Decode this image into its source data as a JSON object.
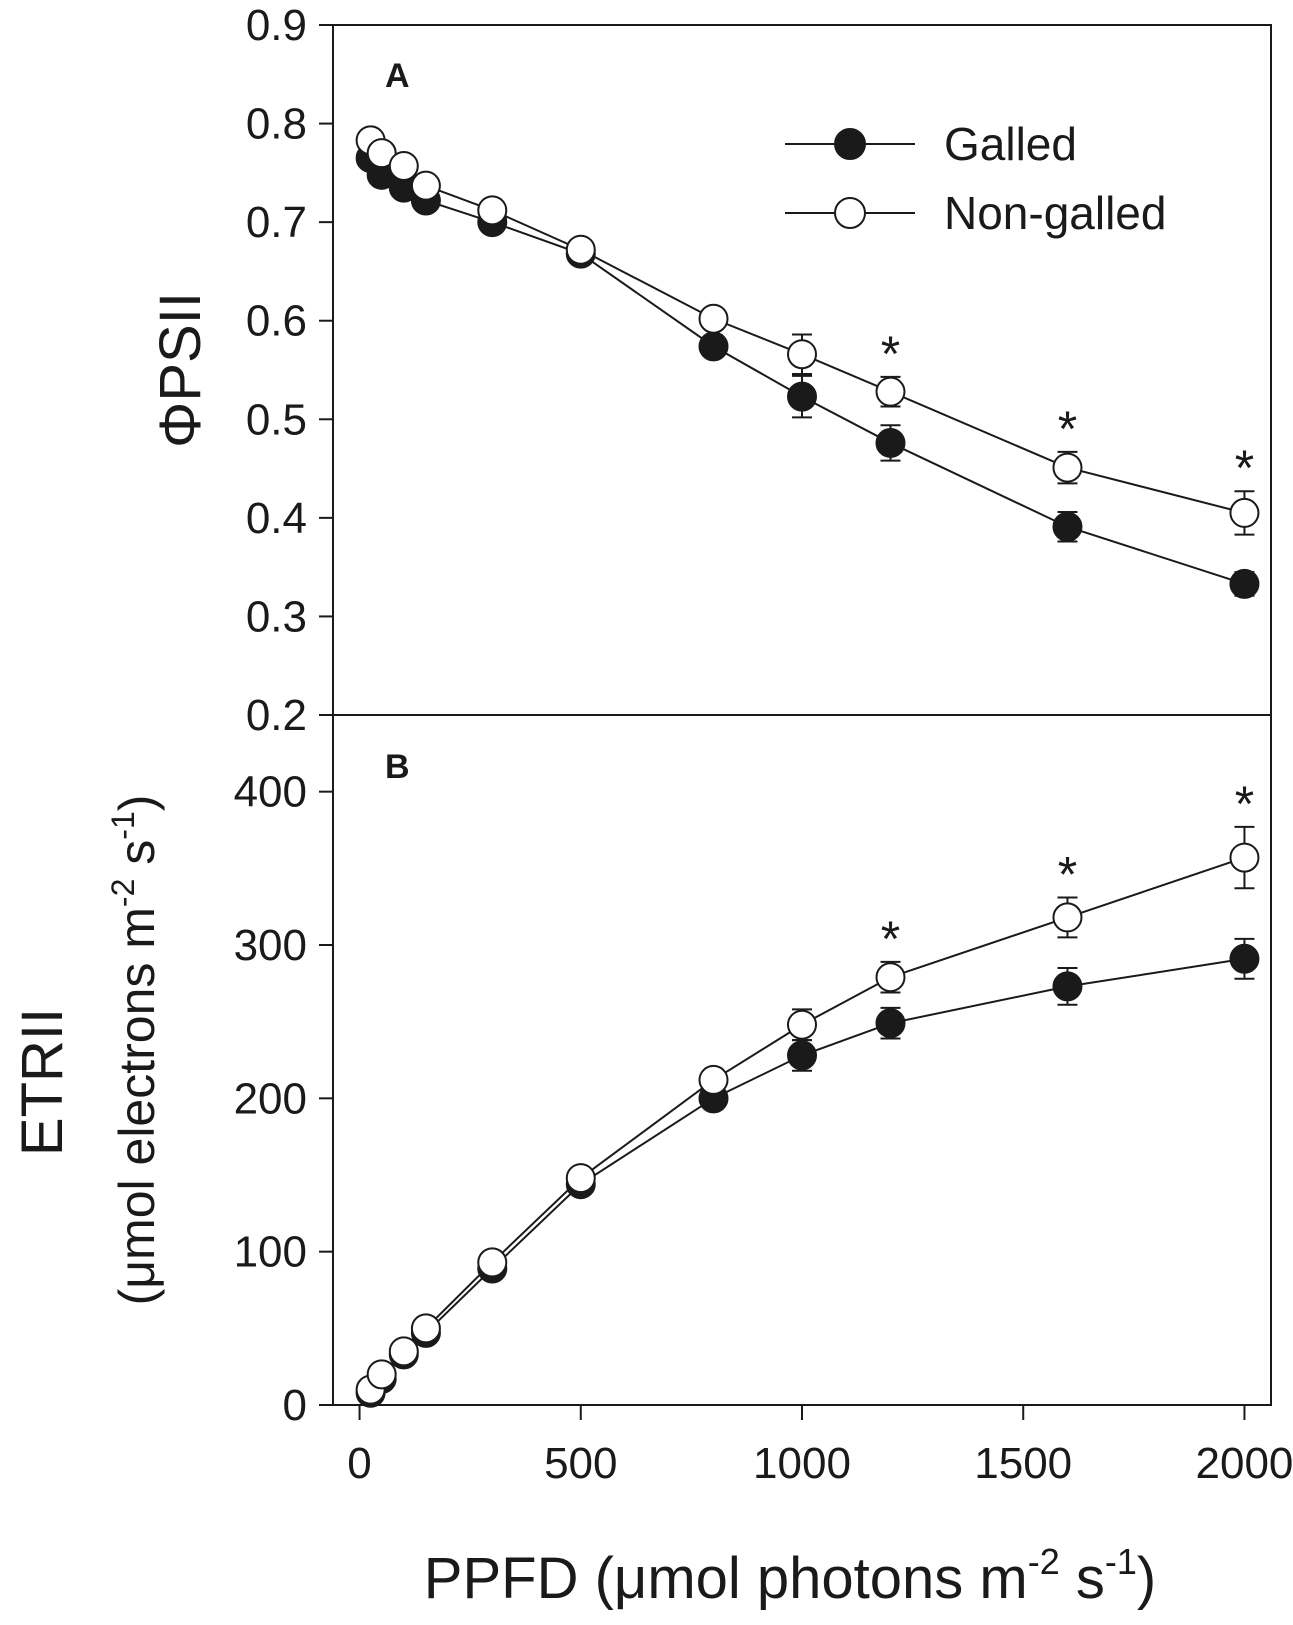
{
  "chart_data": [
    {
      "type": "line",
      "panel": "A",
      "xlabel": "",
      "ylabel": "ΦPSII",
      "xlim": [
        -60,
        2060
      ],
      "ylim": [
        0.2,
        0.9
      ],
      "yticks": [
        "0.2",
        "0.3",
        "0.4",
        "0.5",
        "0.6",
        "0.7",
        "0.8",
        "0.9"
      ],
      "x": [
        25,
        50,
        100,
        150,
        300,
        500,
        800,
        1000,
        1200,
        1600,
        2000
      ],
      "series": [
        {
          "name": "Galled",
          "marker": "filled-circle",
          "values": [
            0.765,
            0.748,
            0.735,
            0.722,
            0.7,
            0.668,
            0.574,
            0.523,
            0.476,
            0.391,
            0.333
          ],
          "errors": [
            0.005,
            0.005,
            0.005,
            0.005,
            0.005,
            0.005,
            0.01,
            0.021,
            0.018,
            0.015,
            0.012
          ]
        },
        {
          "name": "Non-galled",
          "marker": "open-circle",
          "values": [
            0.783,
            0.77,
            0.757,
            0.737,
            0.712,
            0.672,
            0.602,
            0.566,
            0.528,
            0.451,
            0.405
          ],
          "errors": [
            0.005,
            0.005,
            0.005,
            0.005,
            0.005,
            0.005,
            0.005,
            0.02,
            0.015,
            0.016,
            0.022
          ]
        }
      ],
      "significant_x": [
        1200,
        1600,
        2000
      ],
      "significance_marker": "*"
    },
    {
      "type": "line",
      "panel": "B",
      "xlabel": "PPFD (μmol photons m-2 s-1)",
      "ylabel": "ETRII",
      "ylabel_units": "(μmol electrons m-2 s-1)",
      "xlim": [
        -60,
        2060
      ],
      "ylim": [
        0,
        450
      ],
      "xticks": [
        "0",
        "500",
        "1000",
        "1500",
        "2000"
      ],
      "yticks": [
        "0",
        "100",
        "200",
        "300",
        "400"
      ],
      "x": [
        25,
        50,
        100,
        150,
        300,
        500,
        800,
        1000,
        1200,
        1600,
        2000
      ],
      "series": [
        {
          "name": "Galled",
          "marker": "filled-circle",
          "values": [
            8,
            17,
            33,
            47,
            89,
            144,
            200,
            228,
            249,
            273,
            291
          ],
          "errors": [
            1,
            1,
            1,
            1,
            2,
            2,
            4,
            10,
            10,
            12,
            13
          ]
        },
        {
          "name": "Non-galled",
          "marker": "open-circle",
          "values": [
            10,
            20,
            35,
            50,
            93,
            148,
            212,
            248,
            279,
            318,
            357
          ],
          "errors": [
            1,
            1,
            1,
            1,
            2,
            2,
            4,
            10,
            10,
            13,
            20
          ]
        }
      ],
      "significant_x": [
        1200,
        1600,
        2000
      ],
      "significance_marker": "*"
    }
  ],
  "legend": {
    "position": "top-right",
    "items": [
      {
        "label": "Galled",
        "marker": "filled-circle"
      },
      {
        "label": "Non-galled",
        "marker": "open-circle"
      }
    ]
  },
  "labels": {
    "panel_a": "A",
    "panel_b": "B",
    "x_title_main": "PPFD (",
    "x_title_mu": "μ",
    "x_title_mid": "mol photons m",
    "x_title_sup1": "-2",
    "x_title_mid2": " s",
    "x_title_sup2": "-1",
    "x_title_end": ")",
    "y_title_a": "ΦPSII",
    "y_title_b": "ETRII",
    "y_units_open": "(",
    "y_units_mu": "μ",
    "y_units_mid": "mol electrons m",
    "y_units_sup1": "-2",
    "y_units_mid2": " s",
    "y_units_sup2": "-1",
    "y_units_close": ")"
  },
  "colors": {
    "ink": "#1a1a1a",
    "filled_marker": "#1a1a1a",
    "open_marker_fill": "#ffffff",
    "background": "#ffffff"
  }
}
